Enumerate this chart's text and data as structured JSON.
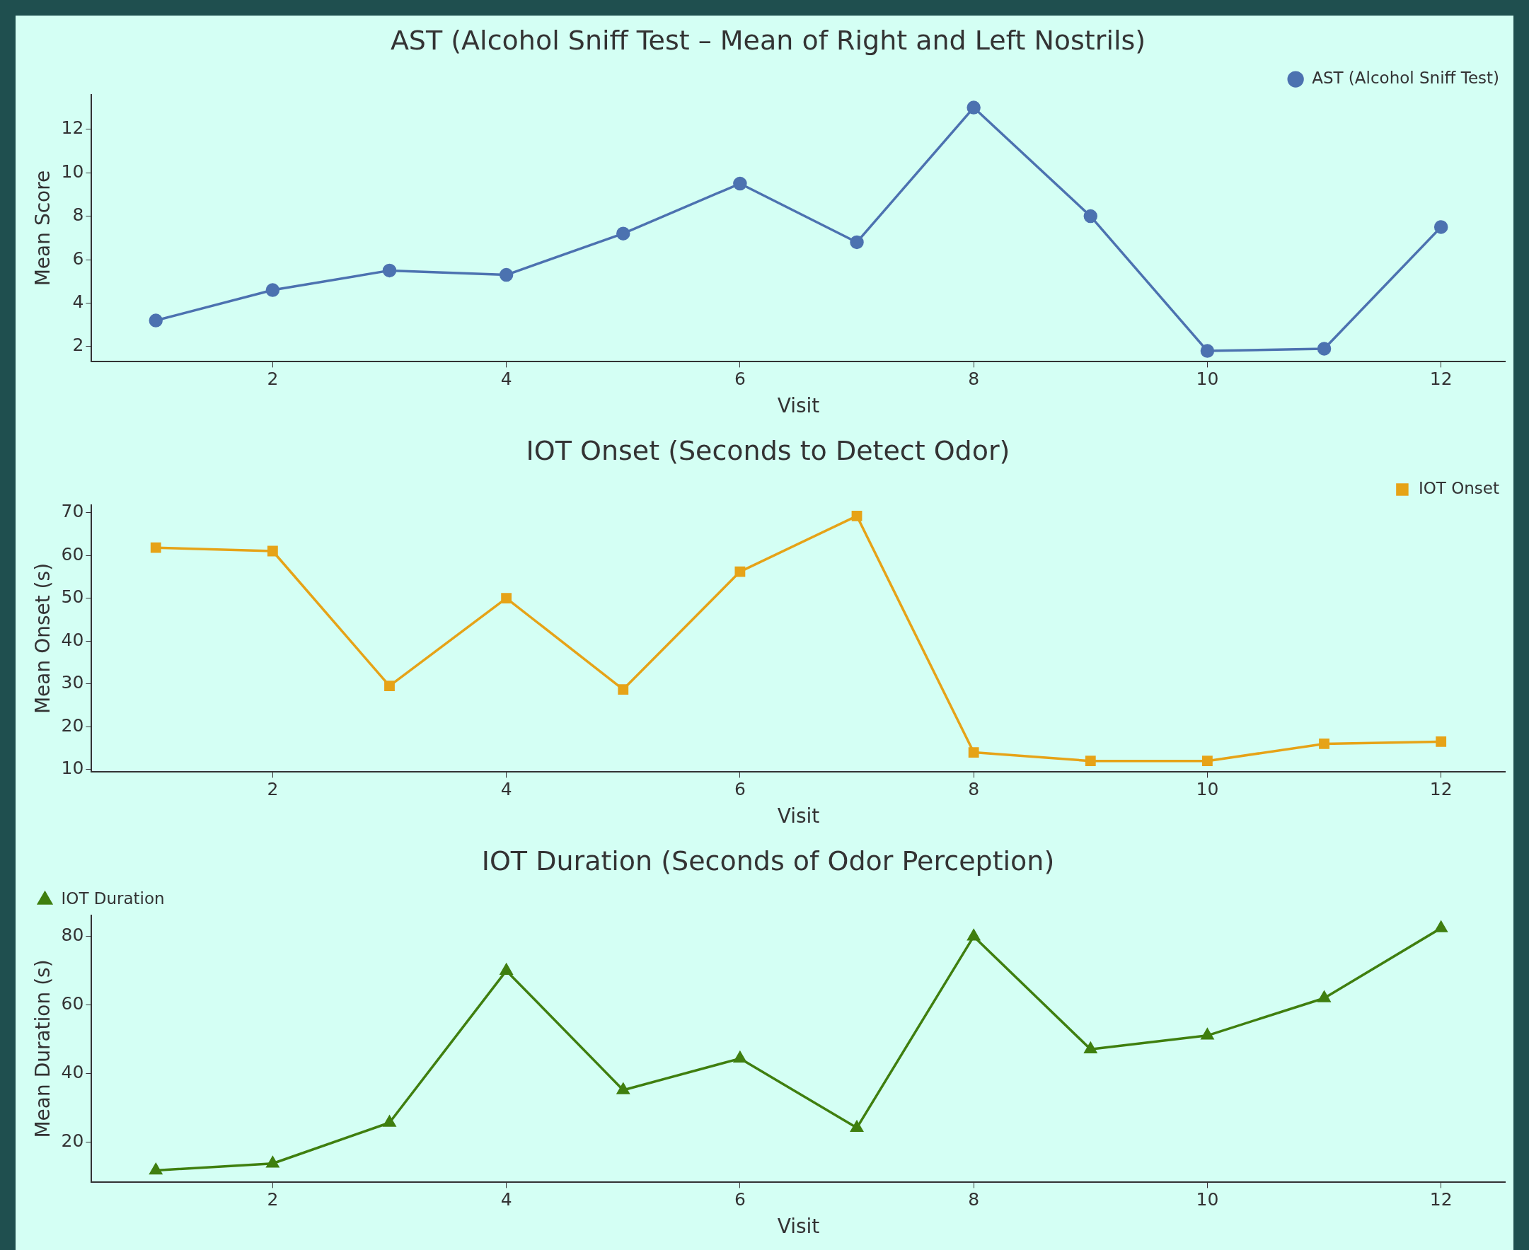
{
  "chart_data": [
    {
      "type": "line",
      "title": "AST (Alcohol Sniff Test – Mean of Right and Left Nostrils)",
      "xlabel": "Visit",
      "ylabel": "Mean Score",
      "x": [
        1,
        2,
        3,
        4,
        5,
        6,
        7,
        8,
        9,
        10,
        11,
        12
      ],
      "series": [
        {
          "name": "AST (Alcohol Sniff Test)",
          "color": "#4c72b0",
          "values": [
            3.2,
            4.6,
            5.5,
            5.3,
            7.2,
            9.5,
            6.8,
            13.0,
            8.0,
            1.8,
            1.9,
            7.5
          ]
        }
      ],
      "xlim": [
        0.45,
        12.55
      ],
      "xticks": [
        2,
        4,
        6,
        8,
        10,
        12
      ],
      "ylim": [
        1.3,
        13.6
      ],
      "yticks": [
        2,
        4,
        6,
        8,
        10,
        12
      ],
      "legend": "top right",
      "marker": "circle",
      "grid": false
    },
    {
      "type": "line",
      "title": "IOT Onset (Seconds to Detect Odor)",
      "xlabel": "Visit",
      "ylabel": "Mean Onset (s)",
      "x": [
        1,
        2,
        3,
        4,
        5,
        6,
        7,
        8,
        9,
        10,
        11,
        12
      ],
      "series": [
        {
          "name": "IOT Onset",
          "color": "#e6a317",
          "values": [
            61.8,
            61,
            29.5,
            50,
            28.7,
            56.2,
            69.2,
            14,
            12,
            12,
            16,
            16.5
          ]
        }
      ],
      "xlim": [
        0.45,
        12.55
      ],
      "xticks": [
        2,
        4,
        6,
        8,
        10,
        12
      ],
      "ylim": [
        9.4,
        71.8
      ],
      "yticks": [
        10,
        20,
        30,
        40,
        50,
        60,
        70
      ],
      "legend": "top right",
      "marker": "square",
      "grid": false
    },
    {
      "type": "line",
      "title": "IOT Duration (Seconds of Odor Perception)",
      "xlabel": "Visit",
      "ylabel": "Mean Duration (s)",
      "x": [
        1,
        2,
        3,
        4,
        5,
        6,
        7,
        8,
        9,
        10,
        11,
        12
      ],
      "series": [
        {
          "name": "IOT Duration",
          "color": "#3f7f0f",
          "values": [
            11.8,
            13.8,
            25.7,
            70,
            35.2,
            44.4,
            24.2,
            80,
            47.1,
            51.1,
            62,
            82.4
          ]
        }
      ],
      "xlim": [
        0.45,
        12.55
      ],
      "xticks": [
        2,
        4,
        6,
        8,
        10,
        12
      ],
      "ylim": [
        8.3,
        86.2
      ],
      "yticks": [
        20,
        40,
        60,
        80
      ],
      "legend": "top left",
      "marker": "triangle",
      "grid": false
    }
  ]
}
